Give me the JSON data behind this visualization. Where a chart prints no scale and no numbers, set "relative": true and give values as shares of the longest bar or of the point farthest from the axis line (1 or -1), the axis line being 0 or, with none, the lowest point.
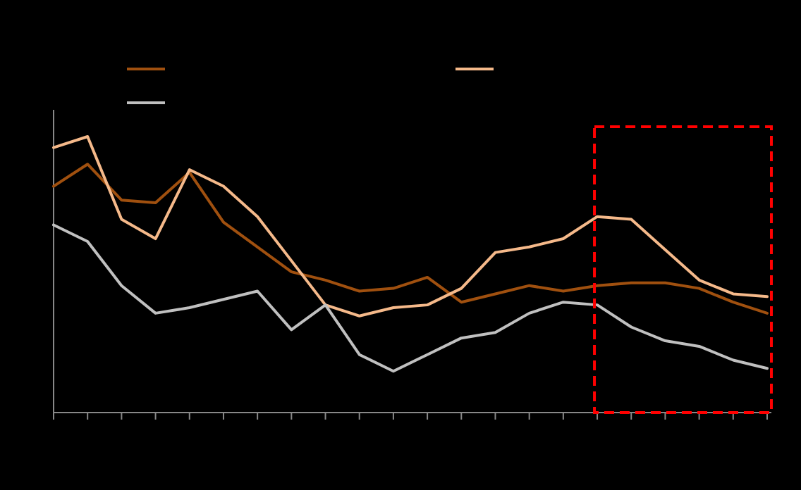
{
  "chart_data": {
    "type": "line",
    "relative": true,
    "line_style": "solid",
    "categories": [
      null,
      null,
      null,
      null,
      null,
      null,
      null,
      null,
      null,
      null,
      null,
      null,
      null,
      null,
      null,
      null,
      null,
      null,
      null,
      null,
      null,
      null
    ],
    "series": [
      {
        "color": "#a0500f",
        "values": [
          0.82,
          0.9,
          0.77,
          0.76,
          0.87,
          0.69,
          0.6,
          0.51,
          0.48,
          0.44,
          0.45,
          0.49,
          0.4,
          0.43,
          0.46,
          0.44,
          0.46,
          0.47,
          0.47,
          0.45,
          0.4,
          0.36
        ]
      },
      {
        "color": "#f5b98a",
        "values": [
          0.96,
          1,
          0.7,
          0.63,
          0.88,
          0.82,
          0.71,
          0.55,
          0.39,
          0.35,
          0.38,
          0.39,
          0.45,
          0.58,
          0.6,
          0.63,
          0.71,
          0.7,
          0.59,
          0.48,
          0.43,
          0.42
        ]
      },
      {
        "color": "#c0c0c0",
        "values": [
          0.68,
          0.62,
          0.46,
          0.36,
          0.38,
          0.41,
          0.44,
          0.3,
          0.39,
          0.21,
          0.15,
          0.21,
          0.27,
          0.29,
          0.36,
          0.4,
          0.39,
          0.31,
          0.26,
          0.24,
          0.19,
          0.16
        ]
      }
    ]
  }
}
